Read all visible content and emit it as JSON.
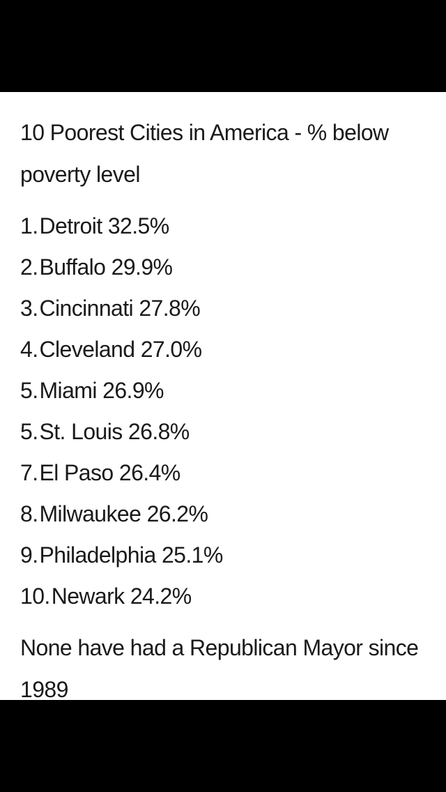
{
  "post": {
    "title": "10 Poorest Cities in America - % below poverty level",
    "items": [
      {
        "rank": "1.",
        "city": "Detroit",
        "percent": "32.5%"
      },
      {
        "rank": "2.",
        "city": "Buffalo",
        "percent": "29.9%"
      },
      {
        "rank": "3.",
        "city": "Cincinnati",
        "percent": "27.8%"
      },
      {
        "rank": "4.",
        "city": "Cleveland",
        "percent": "27.0%"
      },
      {
        "rank": "5.",
        "city": "Miami",
        "percent": "26.9%"
      },
      {
        "rank": "5.",
        "city": "St. Louis",
        "percent": "26.8%"
      },
      {
        "rank": "7.",
        "city": "El Paso",
        "percent": "26.4%"
      },
      {
        "rank": "8.",
        "city": "Milwaukee",
        "percent": "26.2%"
      },
      {
        "rank": "9.",
        "city": "Philadelphia",
        "percent": "25.1%"
      },
      {
        "rank": "10.",
        "city": "Newark",
        "percent": "24.2%"
      }
    ],
    "footer": "None have had a Republican Mayor since 1989"
  }
}
